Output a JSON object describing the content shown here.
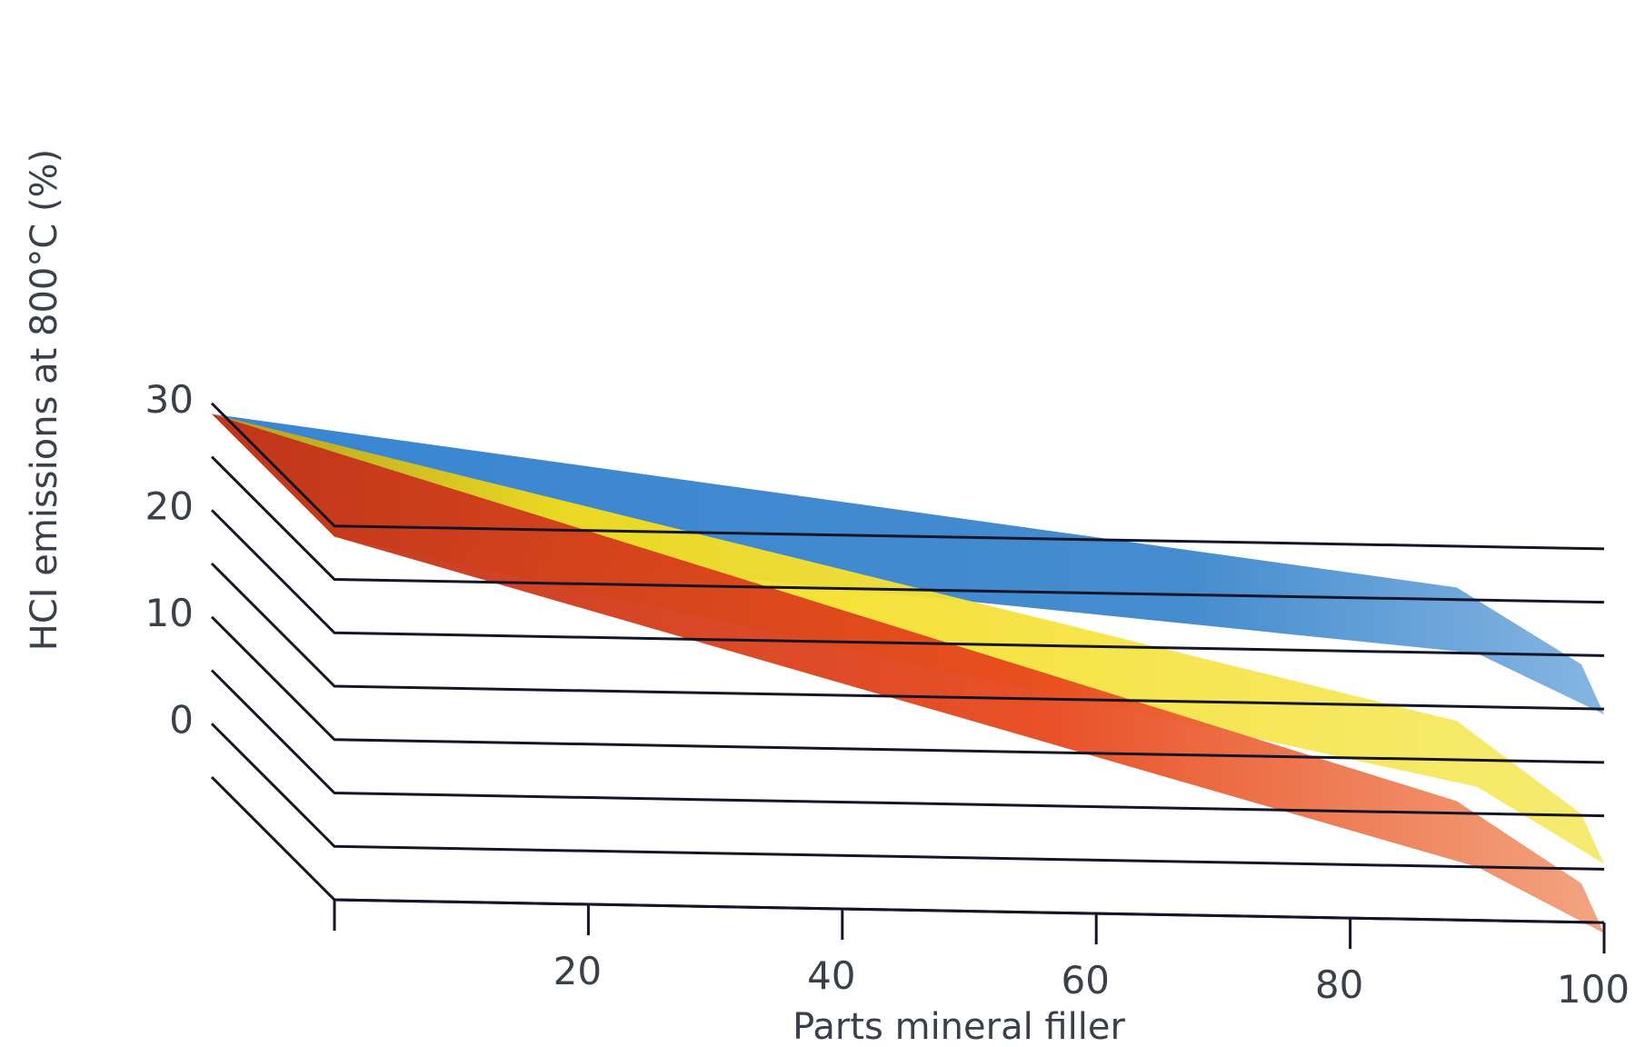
{
  "chart_data": {
    "type": "area",
    "style": "3d-ribbon",
    "title": "",
    "xlabel": "Parts mineral filler",
    "ylabel": "HCI emissions at 800°C (%)",
    "x_ticks": [
      20,
      40,
      60,
      80,
      100
    ],
    "y_ticks": [
      0,
      10,
      20,
      30
    ],
    "xlim": [
      0,
      100
    ],
    "ylim": [
      -5,
      30
    ],
    "grid": true,
    "legend": "none",
    "series": [
      {
        "color": "#3b86cc",
        "x": [
          0,
          90,
          100
        ],
        "values": [
          29,
          20,
          14.5
        ]
      },
      {
        "color": "#f2d81e",
        "x": [
          0,
          90,
          100
        ],
        "values": [
          29,
          7.5,
          0.5
        ]
      },
      {
        "color": "#e8481c",
        "x": [
          0,
          90,
          100
        ],
        "values": [
          29,
          0,
          -6
        ]
      }
    ]
  }
}
